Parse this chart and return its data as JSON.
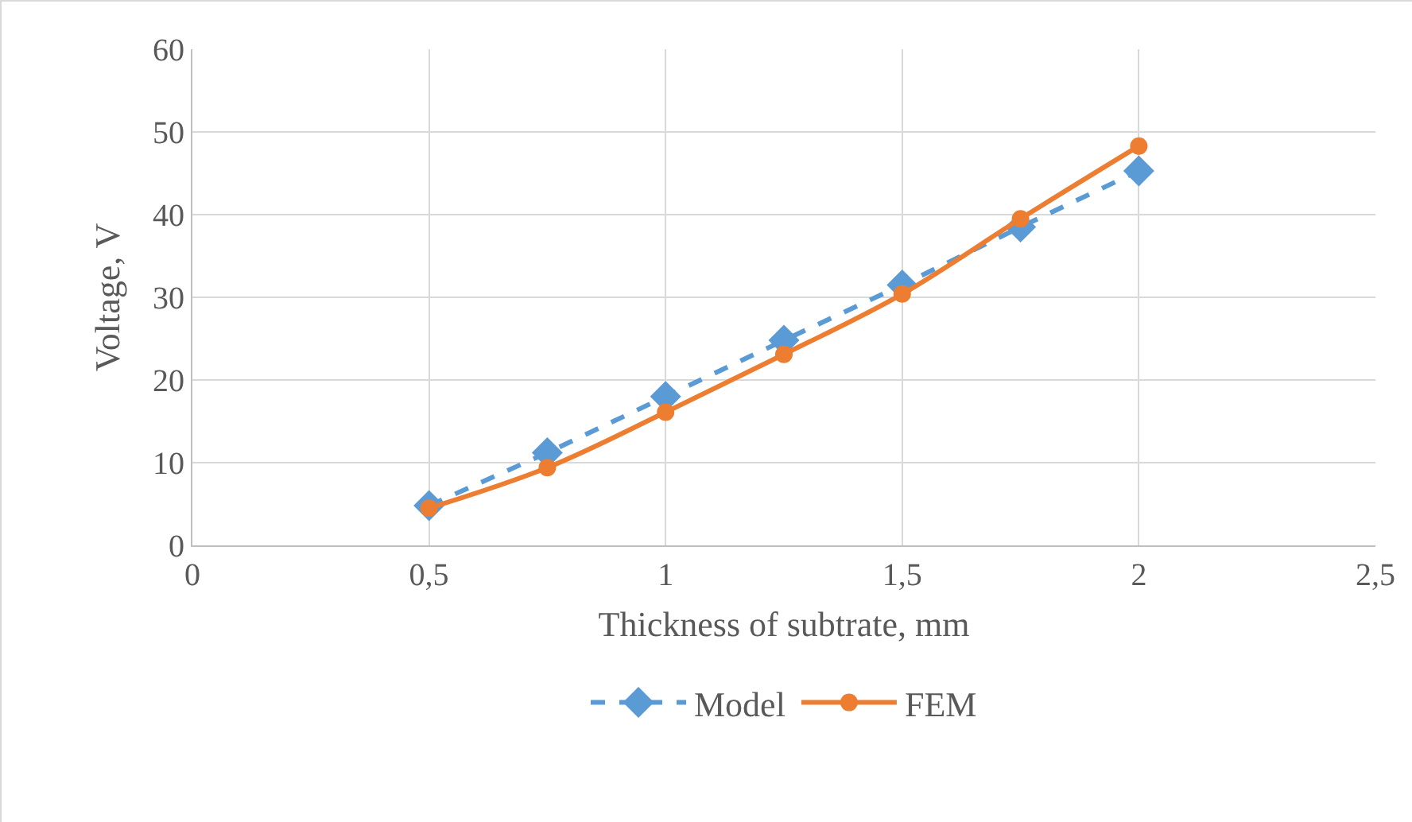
{
  "chart_data": {
    "type": "line",
    "xlabel": "Thickness of subtrate, mm",
    "ylabel": "Voltage, V",
    "x": [
      0.5,
      0.75,
      1,
      1.25,
      1.5,
      1.75,
      2
    ],
    "series": [
      {
        "name": "Model",
        "color": "#5b9bd5",
        "marker": "diamond",
        "line_style": "dashed",
        "values": [
          4.8,
          11.2,
          18.0,
          24.8,
          31.5,
          38.5,
          45.3
        ]
      },
      {
        "name": "FEM",
        "color": "#ed7d31",
        "marker": "circle",
        "line_style": "solid",
        "values": [
          4.5,
          9.4,
          16.1,
          23.1,
          30.4,
          39.5,
          48.3
        ]
      }
    ],
    "xlim": [
      0,
      2.5
    ],
    "xticks": [
      0,
      {
        "value": 0.5,
        "label": "0,5"
      },
      1,
      {
        "value": 1.5,
        "label": "1,5"
      },
      2,
      {
        "value": 2.5,
        "label": "2,5"
      }
    ],
    "ylim": [
      0,
      60
    ],
    "yticks": [
      0,
      10,
      20,
      30,
      40,
      50,
      60
    ],
    "grid": true,
    "legend": "bottom"
  }
}
